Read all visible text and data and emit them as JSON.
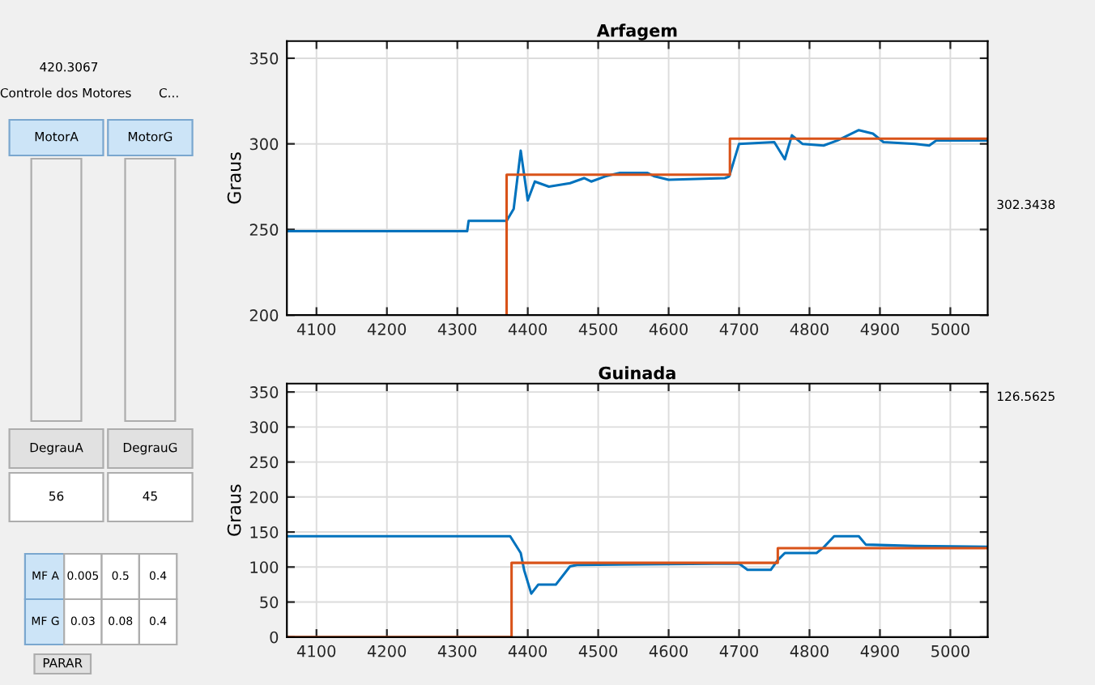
{
  "chart_data": [
    {
      "type": "line",
      "title": "Arfagem",
      "ylabel": "Graus",
      "xlim": [
        4058,
        5053
      ],
      "ylim": [
        200,
        360
      ],
      "xticks": [
        4100,
        4200,
        4300,
        4400,
        4500,
        4600,
        4700,
        4800,
        4900,
        5000
      ],
      "yticks": [
        200,
        250,
        300,
        350
      ],
      "grid": true,
      "annotations": [
        "302.3438"
      ],
      "series": [
        {
          "color": "#0072bd",
          "x": [
            4058,
            4100,
            4200,
            4314,
            4316,
            4370,
            4380,
            4390,
            4400,
            4410,
            4430,
            4460,
            4480,
            4490,
            4510,
            4530,
            4570,
            4580,
            4600,
            4680,
            4686,
            4700,
            4750,
            4765,
            4775,
            4790,
            4820,
            4840,
            4870,
            4890,
            4905,
            4950,
            4970,
            4980,
            5053
          ],
          "values": [
            249,
            249,
            249,
            249,
            255,
            255,
            262,
            296,
            267,
            278,
            275,
            277,
            280,
            278,
            281,
            283,
            283,
            281,
            279,
            280,
            281,
            300,
            301,
            291,
            305,
            300,
            299,
            302,
            308,
            306,
            301,
            300,
            299,
            302,
            302
          ]
        },
        {
          "color": "#d95319",
          "x": [
            4370,
            4370,
            4687,
            4687,
            5053
          ],
          "values": [
            200,
            282,
            282,
            303,
            303
          ]
        }
      ]
    },
    {
      "type": "line",
      "title": "Guinada",
      "ylabel": "Graus",
      "xlim": [
        4058,
        5053
      ],
      "ylim": [
        0,
        362
      ],
      "xticks": [
        4100,
        4200,
        4300,
        4400,
        4500,
        4600,
        4700,
        4800,
        4900,
        5000
      ],
      "yticks": [
        0,
        50,
        100,
        150,
        200,
        250,
        300,
        350
      ],
      "grid": true,
      "annotations": [
        "126.5625"
      ],
      "series": [
        {
          "color": "#0072bd",
          "x": [
            4058,
            4200,
            4375,
            4390,
            4395,
            4405,
            4415,
            4440,
            4460,
            4470,
            4700,
            4712,
            4745,
            4755,
            4765,
            4810,
            4820,
            4835,
            4870,
            4880,
            4950,
            5053
          ],
          "values": [
            144,
            144,
            144,
            120,
            95,
            62,
            75,
            75,
            101,
            103,
            105,
            96,
            96,
            110,
            120,
            120,
            128,
            144,
            144,
            132,
            130,
            129
          ]
        },
        {
          "color": "#d95319",
          "x": [
            4058,
            4377,
            4377,
            4755,
            4755,
            5053
          ],
          "values": [
            0,
            0,
            106,
            106,
            127,
            127
          ]
        }
      ]
    },
    {
      "type": "other",
      "annotations": [
        "420.3067",
        "Controle dos Motores",
        "C...",
        "MotorA",
        "MotorG",
        "DegrauA",
        "DegrauG",
        "56",
        "45",
        "MF A",
        "0.005",
        "0.5",
        "0.4",
        "MF G",
        "0.03",
        "0.08",
        "0.4",
        "PARAR"
      ]
    }
  ]
}
